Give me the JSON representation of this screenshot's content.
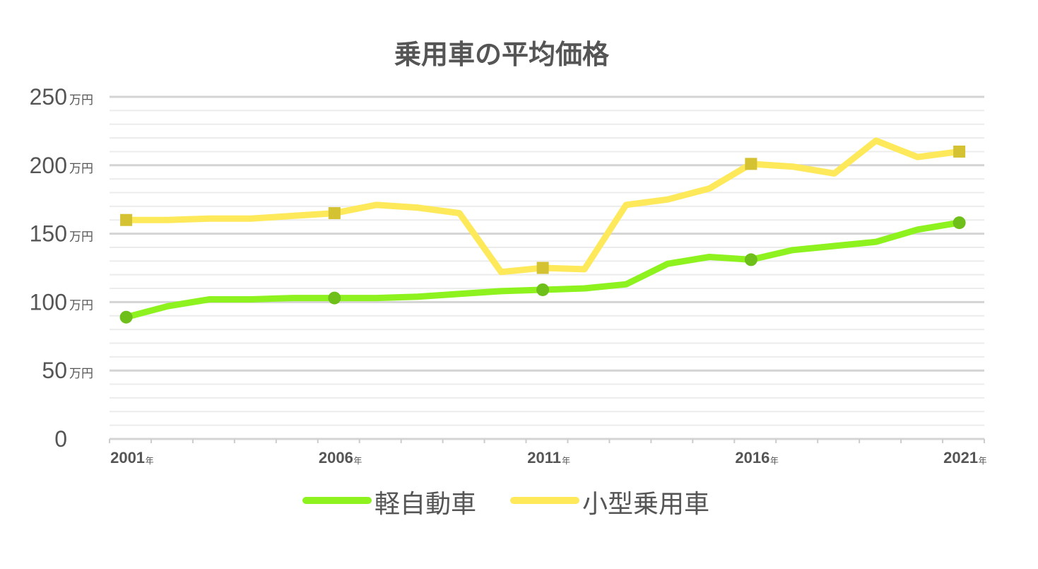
{
  "chart_data": {
    "type": "line",
    "title": "乗用車の平均価格",
    "x": [
      2001,
      2002,
      2003,
      2004,
      2005,
      2006,
      2007,
      2008,
      2009,
      2010,
      2011,
      2012,
      2013,
      2014,
      2015,
      2016,
      2017,
      2018,
      2019,
      2020,
      2021
    ],
    "x_tick_labels": [
      "2001",
      "2006",
      "2011",
      "2016",
      "2021"
    ],
    "x_unit": "年",
    "y_tick_labels": [
      "0",
      "50",
      "100",
      "150",
      "200",
      "250"
    ],
    "y_unit": "万円",
    "ylim": [
      0,
      250
    ],
    "grid": true,
    "legend_position": "bottom",
    "series": [
      {
        "name": "軽自動車",
        "color": "#8ef21f",
        "marker_color": "#6fbf1a",
        "marker": "circle",
        "values": [
          89,
          97,
          102,
          102,
          103,
          103,
          103,
          104,
          106,
          108,
          109,
          110,
          113,
          128,
          133,
          131,
          138,
          141,
          144,
          153,
          158
        ]
      },
      {
        "name": "小型乗用車",
        "color": "#fde95a",
        "marker_color": "#d4c232",
        "marker": "square",
        "values": [
          160,
          160,
          161,
          161,
          163,
          165,
          171,
          169,
          165,
          122,
          125,
          124,
          171,
          175,
          183,
          201,
          199,
          194,
          218,
          206,
          210
        ]
      }
    ]
  }
}
